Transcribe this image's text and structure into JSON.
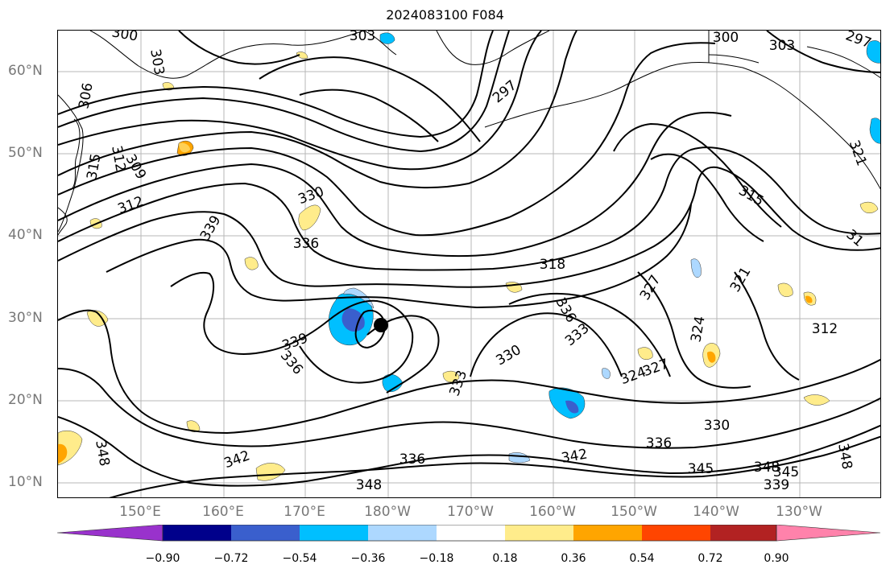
{
  "title": "2024083100 F084",
  "latitude_labels": [
    "60°N",
    "50°N",
    "40°N",
    "30°N",
    "20°N",
    "10°N"
  ],
  "longitude_labels": [
    "150°E",
    "160°E",
    "170°E",
    "180°W",
    "170°W",
    "160°W",
    "150°W",
    "140°W",
    "130°W"
  ],
  "colorbar": {
    "colors": [
      "#9932CC",
      "#00008B",
      "#3A5FCD",
      "#00BFFF",
      "#ADD8FF",
      "#FFFFFF",
      "#FFEC8B",
      "#FFA500",
      "#FF4500",
      "#B22222",
      "#FF82AB"
    ],
    "tick_labels": [
      "−0.90",
      "−0.72",
      "−0.54",
      "−0.36",
      "−0.18",
      "0.18",
      "0.36",
      "0.54",
      "0.72",
      "0.90"
    ]
  },
  "contour_labels": [
    {
      "text": "300"
    },
    {
      "text": "303"
    },
    {
      "text": "303"
    },
    {
      "text": "306"
    },
    {
      "text": "300"
    },
    {
      "text": "303"
    },
    {
      "text": "297"
    },
    {
      "text": "297"
    },
    {
      "text": "312"
    },
    {
      "text": "315"
    },
    {
      "text": "309"
    },
    {
      "text": "312"
    },
    {
      "text": "330"
    },
    {
      "text": "339"
    },
    {
      "text": "336"
    },
    {
      "text": "318"
    },
    {
      "text": "315"
    },
    {
      "text": "321"
    },
    {
      "text": "327"
    },
    {
      "text": "336"
    },
    {
      "text": "333"
    },
    {
      "text": "324"
    },
    {
      "text": "339"
    },
    {
      "text": "336"
    },
    {
      "text": "330"
    },
    {
      "text": "333"
    },
    {
      "text": "324"
    },
    {
      "text": "327"
    },
    {
      "text": "312"
    },
    {
      "text": "330"
    },
    {
      "text": "336"
    },
    {
      "text": "342"
    },
    {
      "text": "342"
    },
    {
      "text": "336"
    },
    {
      "text": "348"
    },
    {
      "text": "345"
    },
    {
      "text": "348"
    },
    {
      "text": "345"
    },
    {
      "text": "339"
    },
    {
      "text": "348"
    },
    {
      "text": "348"
    },
    {
      "text": "321"
    },
    {
      "text": "31"
    }
  ],
  "storm_marker": {
    "label": "",
    "color": "#000000"
  }
}
